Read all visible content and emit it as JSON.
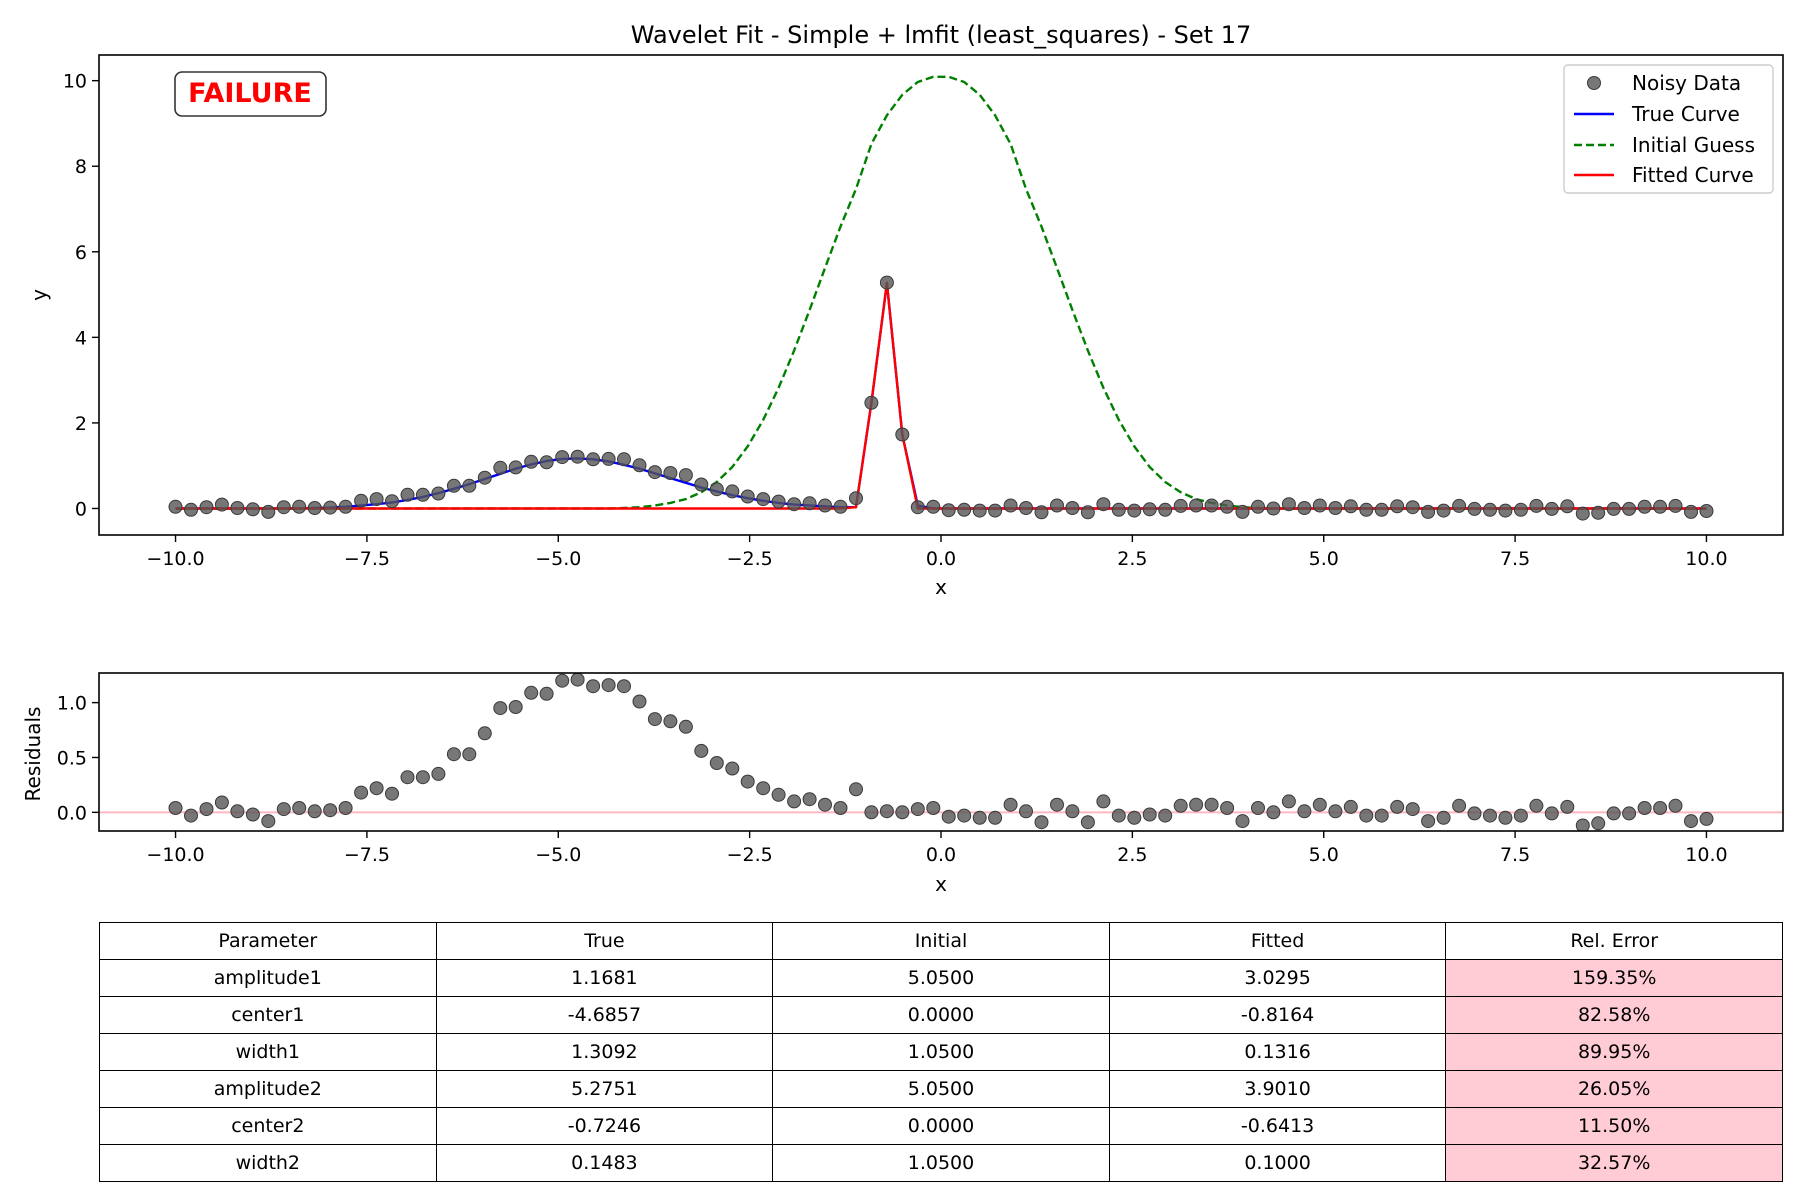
{
  "chart_data": [
    {
      "type": "line",
      "title": "Wavelet Fit - Simple + lmfit (least_squares) - Set 17",
      "xlabel": "x",
      "ylabel": "y",
      "xlim": [
        -11.0,
        11.0
      ],
      "ylim": [
        -0.62,
        10.6
      ],
      "xticks": [
        -10.0,
        -7.5,
        -5.0,
        -2.5,
        0.0,
        2.5,
        5.0,
        7.5,
        10.0
      ],
      "xtick_labels": [
        "−10.0",
        "−7.5",
        "−5.0",
        "−2.5",
        "0.0",
        "2.5",
        "5.0",
        "7.5",
        "10.0"
      ],
      "yticks": [
        0,
        2,
        4,
        6,
        8,
        10
      ],
      "ytick_labels": [
        "0",
        "2",
        "4",
        "6",
        "8",
        "10"
      ],
      "grid": false,
      "legend_position": "top-right",
      "status_label": "FAILURE",
      "x": [
        -10.0,
        -9.798,
        -9.596,
        -9.394,
        -9.192,
        -8.99,
        -8.788,
        -8.586,
        -8.384,
        -8.182,
        -7.98,
        -7.778,
        -7.576,
        -7.374,
        -7.172,
        -6.97,
        -6.768,
        -6.566,
        -6.364,
        -6.162,
        -5.96,
        -5.758,
        -5.556,
        -5.354,
        -5.152,
        -4.949,
        -4.747,
        -4.545,
        -4.343,
        -4.141,
        -3.939,
        -3.737,
        -3.535,
        -3.333,
        -3.131,
        -2.929,
        -2.727,
        -2.525,
        -2.323,
        -2.121,
        -1.919,
        -1.717,
        -1.515,
        -1.313,
        -1.111,
        -0.909,
        -0.707,
        -0.505,
        -0.303,
        -0.101,
        0.101,
        0.303,
        0.505,
        0.707,
        0.909,
        1.111,
        1.313,
        1.515,
        1.717,
        1.919,
        2.121,
        2.323,
        2.525,
        2.727,
        2.929,
        3.131,
        3.333,
        3.535,
        3.737,
        3.939,
        4.141,
        4.343,
        4.545,
        4.747,
        4.949,
        5.152,
        5.354,
        5.556,
        5.758,
        5.96,
        6.162,
        6.364,
        6.566,
        6.768,
        6.97,
        7.172,
        7.374,
        7.576,
        7.778,
        7.98,
        8.182,
        8.384,
        8.586,
        8.788,
        8.99,
        9.192,
        9.394,
        9.596,
        9.798,
        10.0
      ],
      "series": [
        {
          "name": "Noisy Data",
          "kind": "scatter",
          "color": "#555555",
          "y": [
            0.04,
            -0.03,
            0.03,
            0.09,
            0.01,
            -0.02,
            -0.08,
            0.03,
            0.04,
            0.01,
            0.02,
            0.04,
            0.18,
            0.22,
            0.17,
            0.32,
            0.32,
            0.35,
            0.53,
            0.53,
            0.72,
            0.95,
            0.96,
            1.09,
            1.08,
            1.2,
            1.21,
            1.15,
            1.16,
            1.15,
            1.01,
            0.85,
            0.83,
            0.78,
            0.56,
            0.45,
            0.4,
            0.28,
            0.22,
            0.16,
            0.1,
            0.12,
            0.07,
            0.04,
            0.24,
            2.47,
            5.28,
            1.73,
            0.03,
            0.04,
            -0.04,
            -0.03,
            -0.05,
            -0.05,
            0.07,
            0.01,
            -0.09,
            0.07,
            0.01,
            -0.09,
            0.1,
            -0.03,
            -0.05,
            -0.02,
            -0.03,
            0.06,
            0.07,
            0.07,
            0.04,
            -0.08,
            0.04,
            0.0,
            0.1,
            0.01,
            0.07,
            0.01,
            0.05,
            -0.03,
            -0.03,
            0.05,
            0.03,
            -0.08,
            -0.05,
            0.06,
            -0.01,
            -0.03,
            -0.05,
            -0.03,
            0.06,
            -0.01,
            0.05,
            -0.12,
            -0.1,
            -0.01,
            -0.01,
            0.04,
            0.04,
            0.06,
            -0.08,
            -0.06
          ]
        },
        {
          "name": "True Curve",
          "kind": "line",
          "color": "#0000ff",
          "y": [
            0.0,
            0.0,
            0.0,
            0.0,
            0.0,
            0.0,
            0.0,
            0.0,
            0.0,
            0.01,
            0.02,
            0.04,
            0.07,
            0.1,
            0.14,
            0.2,
            0.27,
            0.36,
            0.46,
            0.57,
            0.69,
            0.81,
            0.93,
            1.03,
            1.11,
            1.16,
            1.17,
            1.15,
            1.1,
            1.02,
            0.93,
            0.82,
            0.71,
            0.6,
            0.49,
            0.4,
            0.31,
            0.24,
            0.18,
            0.13,
            0.09,
            0.07,
            0.05,
            0.03,
            0.03,
            2.47,
            5.27,
            1.73,
            0.07,
            0.0,
            0.0,
            0.0,
            0.0,
            0.0,
            0.0,
            0.0,
            0.0,
            0.0,
            0.0,
            0.0,
            0.0,
            0.0,
            0.0,
            0.0,
            0.0,
            0.0,
            0.0,
            0.0,
            0.0,
            0.0,
            0.0,
            0.0,
            0.0,
            0.0,
            0.0,
            0.0,
            0.0,
            0.0,
            0.0,
            0.0,
            0.0,
            0.0,
            0.0,
            0.0,
            0.0,
            0.0,
            0.0,
            0.0,
            0.0,
            0.0,
            0.0,
            0.0,
            0.0,
            0.0,
            0.0,
            0.0,
            0.0,
            0.0,
            0.0,
            0.0
          ]
        },
        {
          "name": "Initial Guess",
          "kind": "line",
          "dash": true,
          "color": "#008000",
          "y": [
            0.0,
            0.0,
            0.0,
            0.0,
            0.0,
            0.0,
            0.0,
            0.0,
            0.0,
            0.0,
            0.0,
            0.0,
            0.0,
            0.0,
            0.0,
            0.0,
            0.0,
            0.0,
            0.0,
            0.0,
            0.0,
            0.0,
            0.0,
            0.0,
            0.0,
            0.0,
            0.0,
            0.0,
            0.0,
            0.01,
            0.03,
            0.07,
            0.13,
            0.22,
            0.38,
            0.62,
            0.97,
            1.45,
            2.07,
            2.82,
            3.69,
            4.64,
            5.62,
            6.59,
            7.47,
            8.52,
            9.19,
            9.67,
            9.97,
            10.09,
            10.09,
            9.97,
            9.67,
            9.19,
            8.52,
            7.47,
            6.59,
            5.62,
            4.64,
            3.69,
            2.82,
            2.07,
            1.45,
            0.97,
            0.62,
            0.38,
            0.22,
            0.13,
            0.07,
            0.03,
            0.01,
            0.0,
            0.0,
            0.0,
            0.0,
            0.0,
            0.0,
            0.0,
            0.0,
            0.0,
            0.0,
            0.0,
            0.0,
            0.0,
            0.0,
            0.0,
            0.0,
            0.0,
            0.0,
            0.0,
            0.0,
            0.0,
            0.0,
            0.0,
            0.0,
            0.0,
            0.0,
            0.0,
            0.0,
            0.0
          ]
        },
        {
          "name": "Fitted Curve",
          "kind": "line",
          "color": "#ff0000",
          "y": [
            0.0,
            0.0,
            0.0,
            0.0,
            0.0,
            0.0,
            0.0,
            0.0,
            0.0,
            0.0,
            0.0,
            0.0,
            0.0,
            0.0,
            0.0,
            0.0,
            0.0,
            0.0,
            0.0,
            0.0,
            0.0,
            0.0,
            0.0,
            0.0,
            0.0,
            0.0,
            0.0,
            0.0,
            0.0,
            0.0,
            0.0,
            0.0,
            0.0,
            0.0,
            0.0,
            0.0,
            0.0,
            0.0,
            0.0,
            0.0,
            0.0,
            0.0,
            0.0,
            0.0,
            0.03,
            2.47,
            5.27,
            1.73,
            0.0,
            0.0,
            0.0,
            0.0,
            0.0,
            0.0,
            0.0,
            0.0,
            0.0,
            0.0,
            0.0,
            0.0,
            0.0,
            0.0,
            0.0,
            0.0,
            0.0,
            0.0,
            0.0,
            0.0,
            0.0,
            0.0,
            0.0,
            0.0,
            0.0,
            0.0,
            0.0,
            0.0,
            0.0,
            0.0,
            0.0,
            0.0,
            0.0,
            0.0,
            0.0,
            0.0,
            0.0,
            0.0,
            0.0,
            0.0,
            0.0,
            0.0,
            0.0,
            0.0,
            0.0,
            0.0,
            0.0,
            0.0,
            0.0,
            0.0,
            0.0,
            0.0
          ]
        }
      ]
    },
    {
      "type": "scatter",
      "xlabel": "x",
      "ylabel": "Residuals",
      "xlim": [
        -11.0,
        11.0
      ],
      "ylim": [
        -0.17,
        1.27
      ],
      "xticks": [
        -10.0,
        -7.5,
        -5.0,
        -2.5,
        0.0,
        2.5,
        5.0,
        7.5,
        10.0
      ],
      "xtick_labels": [
        "−10.0",
        "−7.5",
        "−5.0",
        "−2.5",
        "0.0",
        "2.5",
        "5.0",
        "7.5",
        "10.0"
      ],
      "yticks": [
        0.0,
        0.5,
        1.0
      ],
      "ytick_labels": [
        "0.0",
        "0.5",
        "1.0"
      ],
      "zero_line_color": "#ffb6c1",
      "point_color": "#555555",
      "grid": false
    }
  ],
  "table": {
    "headers": [
      "Parameter",
      "True",
      "Initial",
      "Fitted",
      "Rel. Error"
    ],
    "rows": [
      [
        "amplitude1",
        "1.1681",
        "5.0500",
        "3.0295",
        "159.35%"
      ],
      [
        "center1",
        "-4.6857",
        "0.0000",
        "-0.8164",
        "82.58%"
      ],
      [
        "width1",
        "1.3092",
        "1.0500",
        "0.1316",
        "89.95%"
      ],
      [
        "amplitude2",
        "5.2751",
        "5.0500",
        "3.9010",
        "26.05%"
      ],
      [
        "center2",
        "-0.7246",
        "0.0000",
        "-0.6413",
        "11.50%"
      ],
      [
        "width2",
        "0.1483",
        "1.0500",
        "0.1000",
        "32.57%"
      ]
    ],
    "error_highlight": "#ffccd5"
  }
}
